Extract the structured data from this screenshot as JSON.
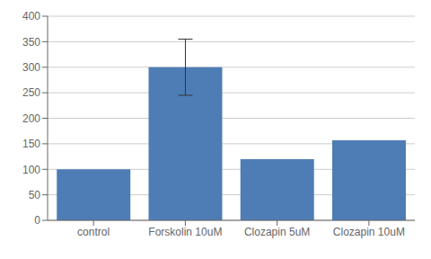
{
  "chart_data": {
    "type": "bar",
    "categories": [
      "control",
      "Forskolin 10uM",
      "Clozapin 5uM",
      "Clozapin 10uM"
    ],
    "values": [
      100,
      300,
      120,
      157
    ],
    "errors": [
      0,
      55,
      0,
      0
    ],
    "color": "#4e7db5",
    "ylim": [
      0,
      400
    ],
    "yticks": [
      0,
      50,
      100,
      150,
      200,
      250,
      300,
      350,
      400
    ],
    "grid": true
  }
}
